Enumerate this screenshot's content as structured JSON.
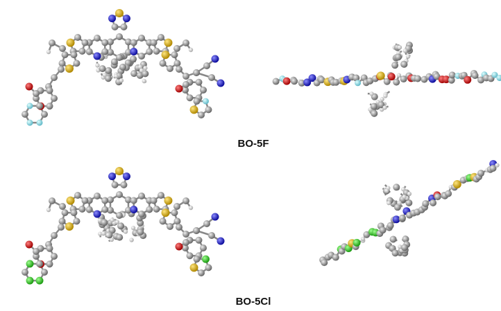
{
  "molecules": [
    {
      "label": "BO-5F"
    },
    {
      "label": "BO-5Cl"
    }
  ]
}
